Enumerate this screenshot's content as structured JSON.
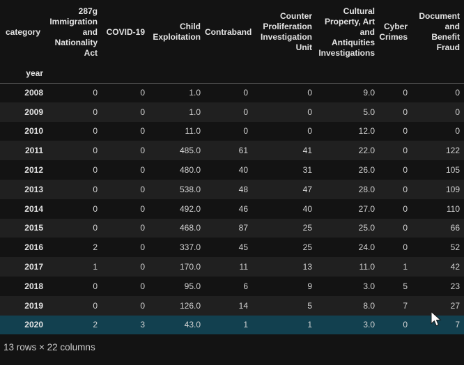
{
  "page": {
    "background": "#131313",
    "stripe_color": "#202020",
    "highlight_color": "#12404f",
    "footer": "13 rows × 22 columns"
  },
  "table": {
    "columns_axis_name": "category",
    "index_name": "year",
    "columns": [
      "287g\nImmigration\nand\nNationality\nAct",
      "COVID-19",
      "Child\nExploitation",
      "Contraband",
      "Counter\nProliferation\nInvestigation\nUnit",
      "Cultural\nProperty, Art\nand\nAntiquities\nInvestigations",
      "Cyber\nCrimes",
      "Document\nand\nBenefit\nFraud"
    ],
    "rows": [
      {
        "year": "2008",
        "values": [
          "0",
          "0",
          "1.0",
          "0",
          "0",
          "9.0",
          "0",
          "0"
        ],
        "highlighted": false
      },
      {
        "year": "2009",
        "values": [
          "0",
          "0",
          "1.0",
          "0",
          "0",
          "5.0",
          "0",
          "0"
        ],
        "highlighted": false
      },
      {
        "year": "2010",
        "values": [
          "0",
          "0",
          "11.0",
          "0",
          "0",
          "12.0",
          "0",
          "0"
        ],
        "highlighted": false
      },
      {
        "year": "2011",
        "values": [
          "0",
          "0",
          "485.0",
          "61",
          "41",
          "22.0",
          "0",
          "122"
        ],
        "highlighted": false
      },
      {
        "year": "2012",
        "values": [
          "0",
          "0",
          "480.0",
          "40",
          "31",
          "26.0",
          "0",
          "105"
        ],
        "highlighted": false
      },
      {
        "year": "2013",
        "values": [
          "0",
          "0",
          "538.0",
          "48",
          "47",
          "28.0",
          "0",
          "109"
        ],
        "highlighted": false
      },
      {
        "year": "2014",
        "values": [
          "0",
          "0",
          "492.0",
          "46",
          "40",
          "27.0",
          "0",
          "110"
        ],
        "highlighted": false
      },
      {
        "year": "2015",
        "values": [
          "0",
          "0",
          "468.0",
          "87",
          "25",
          "25.0",
          "0",
          "66"
        ],
        "highlighted": false
      },
      {
        "year": "2016",
        "values": [
          "2",
          "0",
          "337.0",
          "45",
          "25",
          "24.0",
          "0",
          "52"
        ],
        "highlighted": false
      },
      {
        "year": "2017",
        "values": [
          "1",
          "0",
          "170.0",
          "11",
          "13",
          "11.0",
          "1",
          "42"
        ],
        "highlighted": false
      },
      {
        "year": "2018",
        "values": [
          "0",
          "0",
          "95.0",
          "6",
          "9",
          "3.0",
          "5",
          "23"
        ],
        "highlighted": false
      },
      {
        "year": "2019",
        "values": [
          "0",
          "0",
          "126.0",
          "14",
          "5",
          "8.0",
          "7",
          "27"
        ],
        "highlighted": false
      },
      {
        "year": "2020",
        "values": [
          "2",
          "3",
          "43.0",
          "1",
          "1",
          "3.0",
          "0",
          "7"
        ],
        "highlighted": true
      }
    ]
  },
  "cursor": {
    "icon": "arrow-pointer"
  }
}
